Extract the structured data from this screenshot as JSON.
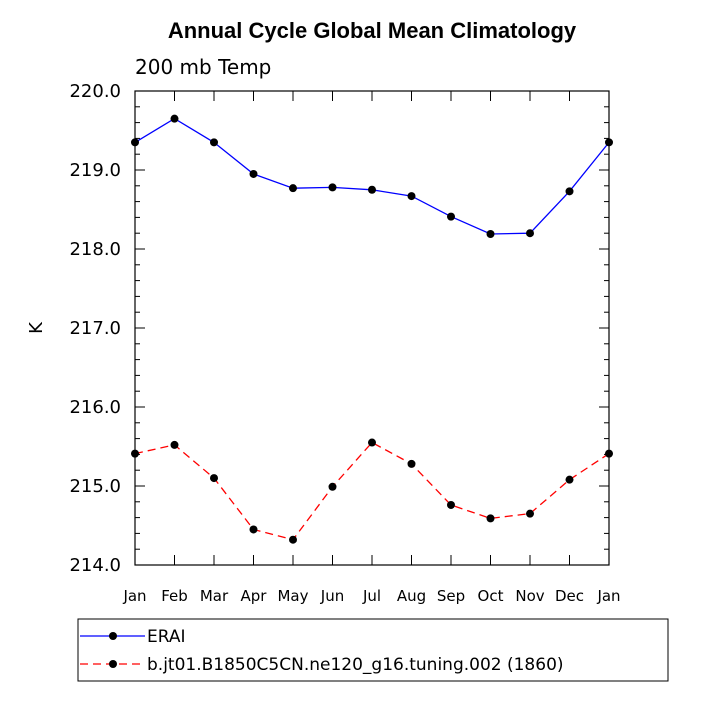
{
  "chart_data": {
    "type": "line",
    "title": "Annual Cycle Global Mean Climatology",
    "subtitle": "200 mb Temp",
    "xlabel": "",
    "ylabel": "K",
    "categories": [
      "Jan",
      "Feb",
      "Mar",
      "Apr",
      "May",
      "Jun",
      "Jul",
      "Aug",
      "Sep",
      "Oct",
      "Nov",
      "Dec",
      "Jan"
    ],
    "ylim": [
      214.0,
      220.0
    ],
    "yticks": [
      "214.0",
      "215.0",
      "216.0",
      "217.0",
      "218.0",
      "219.0",
      "220.0"
    ],
    "grid": false,
    "legend_position": "bottom",
    "series": [
      {
        "name": "ERAI",
        "color": "#0000ff",
        "line_style": "solid",
        "marker": "filled-circle",
        "values": [
          219.35,
          219.65,
          219.35,
          218.95,
          218.77,
          218.78,
          218.75,
          218.67,
          218.41,
          218.19,
          218.2,
          218.73,
          219.35
        ]
      },
      {
        "name": "b.jt01.B1850C5CN.ne120_g16.tuning.002 (1860)",
        "color": "#ff0000",
        "line_style": "dashed",
        "marker": "filled-circle",
        "values": [
          215.41,
          215.52,
          215.1,
          214.45,
          214.32,
          214.99,
          215.55,
          215.28,
          214.76,
          214.59,
          214.65,
          215.08,
          215.41
        ]
      }
    ]
  }
}
